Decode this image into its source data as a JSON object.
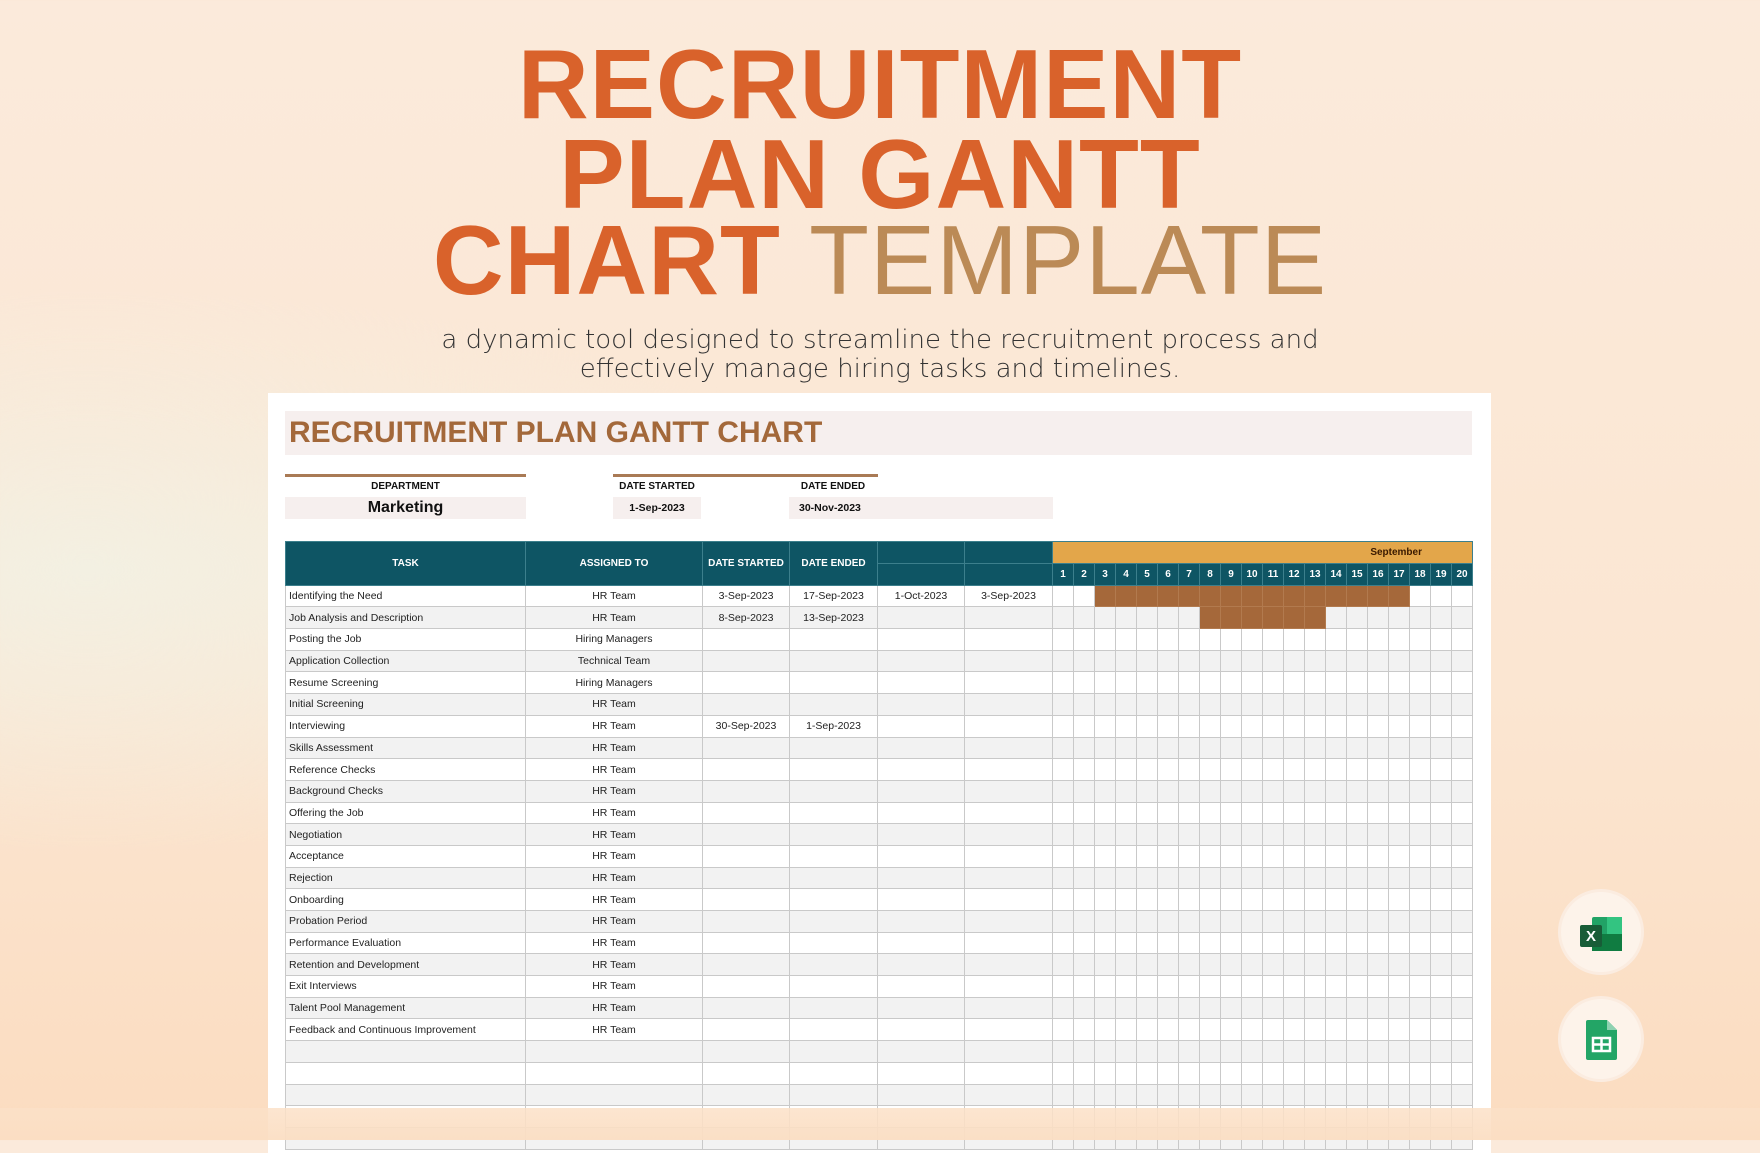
{
  "hero": {
    "line1": "RECRUITMENT",
    "line2": "PLAN GANTT",
    "line3_bold": "CHART",
    "line3_light": "TEMPLATE",
    "subtitle_1": "a dynamic tool designed to streamline the recruitment process and",
    "subtitle_2": "effectively manage hiring tasks and timelines."
  },
  "sheet": {
    "title": "RECRUITMENT PLAN GANTT CHART",
    "department_label": "DEPARTMENT",
    "department": "Marketing",
    "date_started_label": "DATE STARTED",
    "date_started": "1-Sep-2023",
    "date_ended_label": "DATE ENDED",
    "date_ended": "30-Nov-2023"
  },
  "table": {
    "headers": [
      "TASK",
      "ASSIGNED TO",
      "DATE STARTED",
      "DATE ENDED",
      "",
      ""
    ],
    "month": "September",
    "days": [
      "1",
      "2",
      "3",
      "4",
      "5",
      "6",
      "7",
      "8",
      "9",
      "10",
      "11",
      "12",
      "13",
      "14",
      "15",
      "16",
      "17",
      "18",
      "19",
      "20"
    ],
    "rows": [
      {
        "task": "Identifying the Need",
        "assigned": "HR Team",
        "start": "3-Sep-2023",
        "end": "17-Sep-2023",
        "c5": "1-Oct-2023",
        "c6": "3-Sep-2023",
        "bar": [
          3,
          17
        ]
      },
      {
        "task": "Job Analysis and Description",
        "assigned": "HR Team",
        "start": "8-Sep-2023",
        "end": "13-Sep-2023",
        "c5": "",
        "c6": "",
        "bar": [
          8,
          13
        ]
      },
      {
        "task": "Posting the Job",
        "assigned": "Hiring Managers",
        "start": "",
        "end": "",
        "c5": "",
        "c6": ""
      },
      {
        "task": "Application Collection",
        "assigned": "Technical Team",
        "start": "",
        "end": "",
        "c5": "",
        "c6": ""
      },
      {
        "task": "Resume Screening",
        "assigned": "Hiring Managers",
        "start": "",
        "end": "",
        "c5": "",
        "c6": ""
      },
      {
        "task": "Initial Screening",
        "assigned": "HR Team",
        "start": "",
        "end": "",
        "c5": "",
        "c6": ""
      },
      {
        "task": "Interviewing",
        "assigned": "HR Team",
        "start": "30-Sep-2023",
        "end": "1-Sep-2023",
        "c5": "",
        "c6": ""
      },
      {
        "task": "Skills Assessment",
        "assigned": "HR Team",
        "start": "",
        "end": "",
        "c5": "",
        "c6": ""
      },
      {
        "task": "Reference Checks",
        "assigned": "HR Team",
        "start": "",
        "end": "",
        "c5": "",
        "c6": ""
      },
      {
        "task": "Background Checks",
        "assigned": "HR Team",
        "start": "",
        "end": "",
        "c5": "",
        "c6": ""
      },
      {
        "task": "Offering the Job",
        "assigned": "HR Team",
        "start": "",
        "end": "",
        "c5": "",
        "c6": ""
      },
      {
        "task": "Negotiation",
        "assigned": "HR Team",
        "start": "",
        "end": "",
        "c5": "",
        "c6": ""
      },
      {
        "task": "Acceptance",
        "assigned": "HR Team",
        "start": "",
        "end": "",
        "c5": "",
        "c6": ""
      },
      {
        "task": "Rejection",
        "assigned": "HR Team",
        "start": "",
        "end": "",
        "c5": "",
        "c6": ""
      },
      {
        "task": "Onboarding",
        "assigned": "HR Team",
        "start": "",
        "end": "",
        "c5": "",
        "c6": ""
      },
      {
        "task": "Probation Period",
        "assigned": "HR Team",
        "start": "",
        "end": "",
        "c5": "",
        "c6": ""
      },
      {
        "task": "Performance Evaluation",
        "assigned": "HR Team",
        "start": "",
        "end": "",
        "c5": "",
        "c6": ""
      },
      {
        "task": "Retention and Development",
        "assigned": "HR Team",
        "start": "",
        "end": "",
        "c5": "",
        "c6": ""
      },
      {
        "task": "Exit Interviews",
        "assigned": "HR Team",
        "start": "",
        "end": "",
        "c5": "",
        "c6": ""
      },
      {
        "task": "Talent Pool Management",
        "assigned": "HR Team",
        "start": "",
        "end": "",
        "c5": "",
        "c6": ""
      },
      {
        "task": "Feedback and Continuous Improvement",
        "assigned": "HR Team",
        "start": "",
        "end": "",
        "c5": "",
        "c6": ""
      }
    ]
  },
  "icons": {
    "excel": "microsoft-excel-icon",
    "sheets": "google-sheets-icon",
    "excel_letter": "X"
  },
  "colors": {
    "accent": "#d9622b",
    "header": "#0e5564",
    "month": "#e3a64a",
    "bar": "#a5683a"
  }
}
